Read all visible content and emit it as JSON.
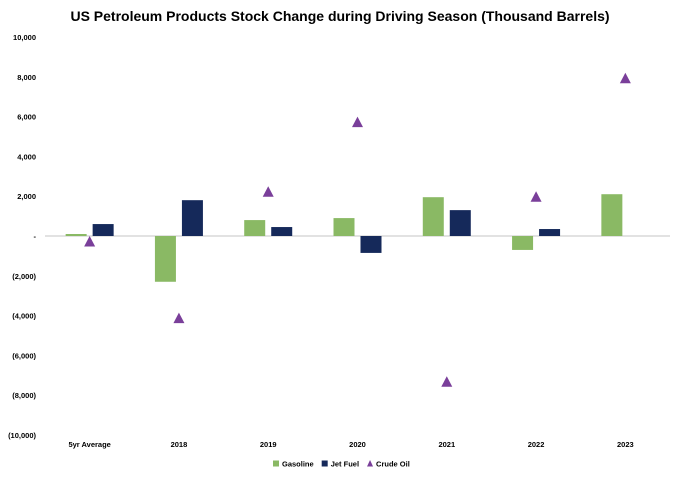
{
  "chart_data": {
    "type": "bar",
    "title": "US Petroleum Products Stock Change during Driving Season (Thousand Barrels)",
    "xlabel": "",
    "ylabel": "",
    "ylim": [
      -10000,
      10000
    ],
    "y_ticks": [
      10000,
      8000,
      6000,
      4000,
      2000,
      0,
      -2000,
      -4000,
      -6000,
      -8000,
      -10000
    ],
    "y_tick_labels": [
      "10,000",
      "8,000",
      "6,000",
      "4,000",
      "2,000",
      "-",
      "(2,000)",
      "(4,000)",
      "(6,000)",
      "(8,000)",
      "(10,000)"
    ],
    "grid": false,
    "legend_position": "bottom",
    "categories": [
      "5yr Average",
      "2018",
      "2019",
      "2020",
      "2021",
      "2022",
      "2023"
    ],
    "series": [
      {
        "name": "Gasoline",
        "kind": "bar",
        "color": "#8ab964",
        "values": [
          100,
          -2300,
          800,
          900,
          1950,
          -700,
          2100
        ]
      },
      {
        "name": "Jet Fuel",
        "kind": "bar",
        "color": "#15295a",
        "values": [
          600,
          1800,
          450,
          -850,
          1300,
          350,
          null
        ]
      },
      {
        "name": "Crude Oil",
        "kind": "marker",
        "marker": "triangle",
        "color": "#7a3f9a",
        "values": [
          -300,
          -4150,
          2200,
          5700,
          -7350,
          1950,
          7900
        ]
      }
    ]
  }
}
